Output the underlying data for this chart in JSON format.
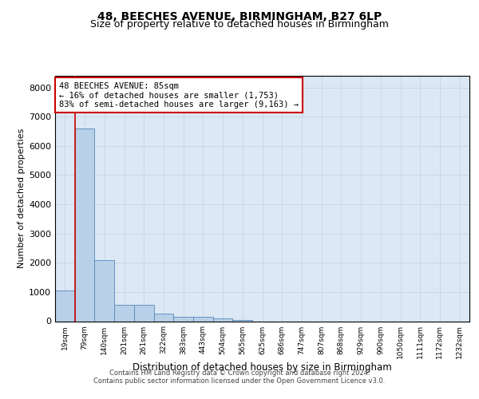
{
  "title1": "48, BEECHES AVENUE, BIRMINGHAM, B27 6LP",
  "title2": "Size of property relative to detached houses in Birmingham",
  "xlabel": "Distribution of detached houses by size in Birmingham",
  "ylabel": "Number of detached properties",
  "categories": [
    "19sqm",
    "79sqm",
    "140sqm",
    "201sqm",
    "261sqm",
    "322sqm",
    "383sqm",
    "443sqm",
    "504sqm",
    "565sqm",
    "625sqm",
    "686sqm",
    "747sqm",
    "807sqm",
    "868sqm",
    "929sqm",
    "990sqm",
    "1050sqm",
    "1111sqm",
    "1172sqm",
    "1232sqm"
  ],
  "values": [
    1050,
    6600,
    2100,
    570,
    570,
    260,
    160,
    140,
    100,
    50,
    0,
    0,
    0,
    0,
    0,
    0,
    0,
    0,
    0,
    0,
    0
  ],
  "bar_color": "#b8d0e8",
  "bar_edge_color": "#5588bb",
  "annotation_box_color": "#cc0000",
  "annotation_line_color": "#cc0000",
  "annotation_title": "48 BEECHES AVENUE: 85sqm",
  "annotation_line1": "← 16% of detached houses are smaller (1,753)",
  "annotation_line2": "83% of semi-detached houses are larger (9,163) →",
  "footer1": "Contains HM Land Registry data © Crown copyright and database right 2024.",
  "footer2": "Contains public sector information licensed under the Open Government Licence v3.0.",
  "ylim": [
    0,
    8400
  ],
  "yticks": [
    0,
    1000,
    2000,
    3000,
    4000,
    5000,
    6000,
    7000,
    8000
  ],
  "grid_color": "#c8d8ea",
  "bg_color": "#dce8f4",
  "title1_fontsize": 10,
  "title2_fontsize": 9,
  "xlabel_fontsize": 8.5,
  "ylabel_fontsize": 8
}
